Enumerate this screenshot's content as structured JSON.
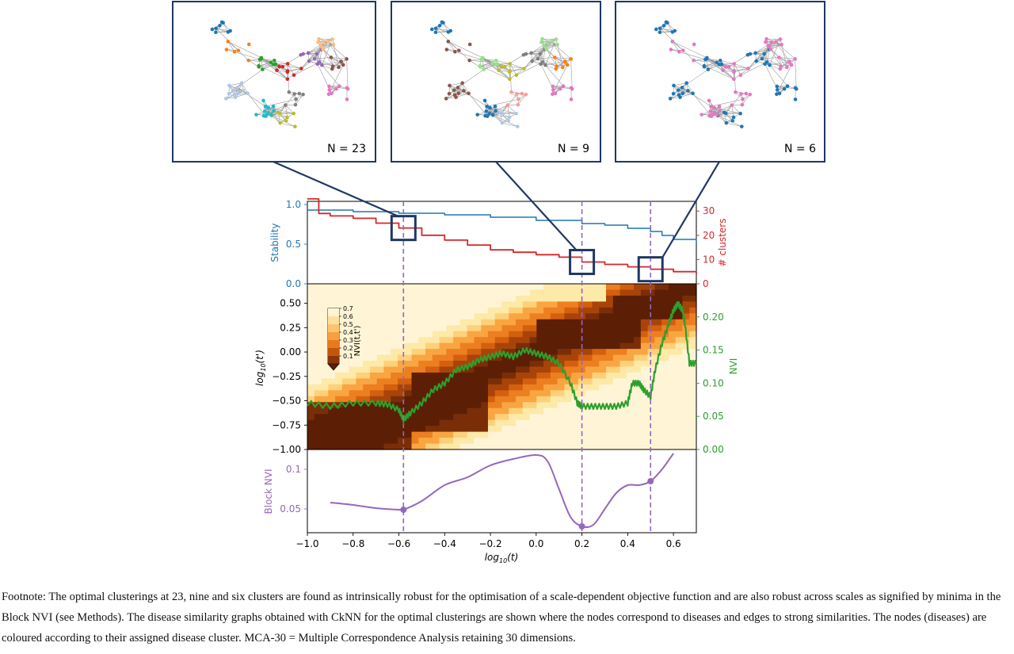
{
  "figure": {
    "insets": [
      {
        "label": "N = 23"
      },
      {
        "label": "N = 9"
      },
      {
        "label": "N = 6"
      }
    ],
    "colorbar": {
      "label": "NVI(t,t')",
      "ticks": [
        "0.7",
        "0.6",
        "0.5",
        "0.4",
        "0.3",
        "0.2",
        "0.1"
      ]
    }
  },
  "chart_data": [
    {
      "type": "line",
      "panel": "stability",
      "ylabel_left": "Stability",
      "ylabel_right": "# clusters",
      "ylim_left": [
        0,
        1.0
      ],
      "ylim_right": [
        0,
        34
      ],
      "yticks_left": [
        "0.0",
        "0.5",
        "1.0"
      ],
      "yticks_right": [
        "0",
        "10",
        "20",
        "30"
      ],
      "series": [
        {
          "name": "Stability",
          "color": "#1f77b4",
          "x": [
            -1.0,
            -0.8,
            -0.6,
            -0.4,
            -0.2,
            0.0,
            0.2,
            0.3,
            0.4,
            0.5,
            0.55,
            0.6,
            0.7
          ],
          "y": [
            0.93,
            0.91,
            0.89,
            0.87,
            0.84,
            0.8,
            0.76,
            0.74,
            0.7,
            0.66,
            0.61,
            0.56,
            0.52
          ]
        },
        {
          "name": "# clusters",
          "color": "#d62728",
          "x": [
            -1.0,
            -0.95,
            -0.9,
            -0.8,
            -0.7,
            -0.6,
            -0.5,
            -0.4,
            -0.3,
            -0.2,
            -0.1,
            0.0,
            0.1,
            0.2,
            0.3,
            0.4,
            0.5,
            0.6,
            0.7
          ],
          "y": [
            35,
            29,
            28,
            27,
            25,
            23,
            20,
            18,
            16,
            14,
            13,
            12,
            11,
            9,
            8,
            7,
            6,
            5,
            4
          ]
        }
      ],
      "highlight_boxes": [
        {
          "x": -0.58,
          "clusters": 23
        },
        {
          "x": 0.2,
          "clusters": 9
        },
        {
          "x": 0.5,
          "clusters": 6
        }
      ]
    },
    {
      "type": "heatmap",
      "panel": "nvi",
      "ylabel_left": "log10(t')",
      "ylabel_right": "NVI",
      "ylim_left": [
        -1.0,
        0.7
      ],
      "ylim_right": [
        0,
        0.25
      ],
      "yticks_left": [
        "0.50",
        "0.25",
        "0.00",
        "−0.25",
        "−0.50",
        "−0.75",
        "−1.00"
      ],
      "yticks_right": [
        "0.00",
        "0.05",
        "0.10",
        "0.15",
        "0.20"
      ],
      "series": [
        {
          "name": "NVI",
          "color": "#2ca02c",
          "x": [
            -1.0,
            -0.9,
            -0.8,
            -0.7,
            -0.65,
            -0.6,
            -0.58,
            -0.55,
            -0.5,
            -0.45,
            -0.4,
            -0.35,
            -0.3,
            -0.25,
            -0.2,
            -0.15,
            -0.1,
            -0.05,
            0.0,
            0.05,
            0.1,
            0.15,
            0.18,
            0.2,
            0.25,
            0.3,
            0.35,
            0.4,
            0.42,
            0.45,
            0.47,
            0.5,
            0.52,
            0.55,
            0.58,
            0.6,
            0.62,
            0.64,
            0.65,
            0.67,
            0.7
          ],
          "y": [
            0.07,
            0.065,
            0.07,
            0.07,
            0.068,
            0.06,
            0.045,
            0.055,
            0.07,
            0.09,
            0.1,
            0.12,
            0.125,
            0.135,
            0.14,
            0.145,
            0.14,
            0.15,
            0.145,
            0.14,
            0.13,
            0.1,
            0.07,
            0.065,
            0.065,
            0.065,
            0.065,
            0.07,
            0.1,
            0.1,
            0.09,
            0.08,
            0.12,
            0.16,
            0.19,
            0.21,
            0.22,
            0.21,
            0.19,
            0.13,
            0.13
          ]
        }
      ]
    },
    {
      "type": "line",
      "panel": "block-nvi",
      "xlabel": "log10(t)",
      "ylabel": "Block NVI",
      "xlim": [
        -1.0,
        0.7
      ],
      "ylim": [
        0.02,
        0.125
      ],
      "xticks": [
        "−1.0",
        "−0.8",
        "−0.6",
        "−0.4",
        "−0.2",
        "0.0",
        "0.2",
        "0.4",
        "0.6"
      ],
      "yticks": [
        "0.05",
        "0.1"
      ],
      "series": [
        {
          "name": "Block NVI",
          "color": "#9467bd",
          "x": [
            -0.9,
            -0.8,
            -0.7,
            -0.6,
            -0.58,
            -0.5,
            -0.4,
            -0.3,
            -0.2,
            -0.1,
            0.0,
            0.05,
            0.1,
            0.15,
            0.2,
            0.25,
            0.3,
            0.35,
            0.4,
            0.45,
            0.5,
            0.55,
            0.6
          ],
          "y": [
            0.058,
            0.055,
            0.051,
            0.049,
            0.049,
            0.06,
            0.08,
            0.09,
            0.105,
            0.113,
            0.118,
            0.11,
            0.075,
            0.04,
            0.028,
            0.03,
            0.05,
            0.07,
            0.08,
            0.08,
            0.085,
            0.1,
            0.12
          ]
        }
      ],
      "markers": [
        {
          "x": -0.58,
          "y": 0.049
        },
        {
          "x": 0.2,
          "y": 0.028
        },
        {
          "x": 0.5,
          "y": 0.085
        }
      ]
    }
  ],
  "footnote": "Footnote: The optimal clusterings at 23, nine and six clusters are found as intrinsically robust for the optimisation of a scale-dependent objective function and are also robust across scales as signified by minima in the Block NVI (see Methods). The disease similarity graphs obtained with CkNN for the optimal clusterings are shown where the nodes correspond to diseases and edges to strong similarities. The nodes (diseases) are coloured according to their assigned disease cluster. MCA-30 = Multiple Correspondence Analysis retaining 30 dimensions."
}
